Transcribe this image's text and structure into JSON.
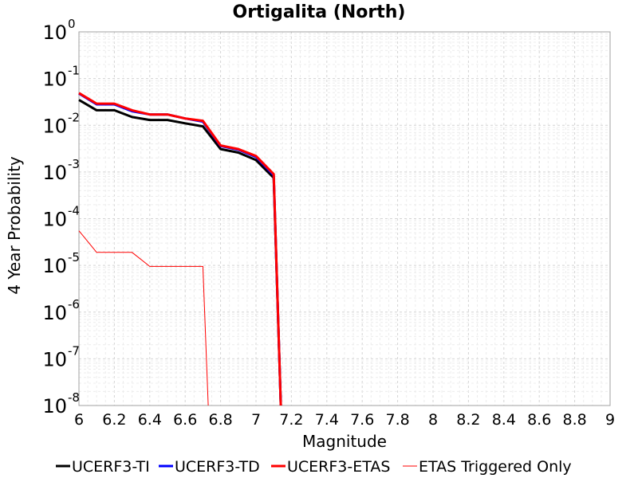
{
  "chart_data": {
    "type": "line",
    "title": "Ortigalita (North)",
    "xlabel": "Magnitude",
    "ylabel": "4 Year Probability",
    "xlim": [
      6,
      9
    ],
    "ylim": [
      1e-08,
      1
    ],
    "yscale": "log",
    "grid": true,
    "legend_position": "bottom",
    "x_ticks": [
      "6",
      "6.2",
      "6.4",
      "6.6",
      "6.8",
      "7",
      "7.2",
      "7.4",
      "7.6",
      "7.8",
      "8",
      "8.2",
      "8.4",
      "8.6",
      "8.8",
      "9"
    ],
    "y_ticks": [
      {
        "base": "10",
        "exp": "0"
      },
      {
        "base": "10",
        "exp": "-1"
      },
      {
        "base": "10",
        "exp": "-2"
      },
      {
        "base": "10",
        "exp": "-3"
      },
      {
        "base": "10",
        "exp": "-4"
      },
      {
        "base": "10",
        "exp": "-5"
      },
      {
        "base": "10",
        "exp": "-6"
      },
      {
        "base": "10",
        "exp": "-7"
      },
      {
        "base": "10",
        "exp": "-8"
      }
    ],
    "series": [
      {
        "name": "UCERF3-TI",
        "color": "#000000",
        "x": [
          6.0,
          6.1,
          6.2,
          6.3,
          6.4,
          6.5,
          6.6,
          6.7,
          6.8,
          6.9,
          7.0,
          7.1,
          7.14
        ],
        "y": [
          0.035,
          0.021,
          0.021,
          0.015,
          0.013,
          0.013,
          0.011,
          0.0095,
          0.0031,
          0.0026,
          0.0018,
          0.00075,
          1e-08
        ]
      },
      {
        "name": "UCERF3-TD",
        "color": "#0000ff",
        "x": [
          6.0,
          6.1,
          6.2,
          6.3,
          6.4,
          6.5,
          6.6,
          6.7,
          6.8,
          6.9,
          7.0,
          7.1,
          7.14
        ],
        "y": [
          0.048,
          0.028,
          0.028,
          0.02,
          0.017,
          0.017,
          0.014,
          0.012,
          0.0036,
          0.003,
          0.0021,
          0.00085,
          1e-08
        ]
      },
      {
        "name": "UCERF3-ETAS",
        "color": "#ff0000",
        "x": [
          6.0,
          6.1,
          6.2,
          6.3,
          6.4,
          6.5,
          6.6,
          6.7,
          6.8,
          6.9,
          7.0,
          7.1,
          7.14
        ],
        "y": [
          0.049,
          0.029,
          0.029,
          0.021,
          0.017,
          0.017,
          0.014,
          0.0125,
          0.0037,
          0.0031,
          0.0022,
          0.0009,
          1e-08
        ]
      },
      {
        "name": "ETAS Triggered Only",
        "color": "#ff0000",
        "x": [
          6.0,
          6.1,
          6.2,
          6.3,
          6.4,
          6.5,
          6.6,
          6.7,
          6.73
        ],
        "y": [
          5.5e-05,
          1.9e-05,
          1.9e-05,
          1.9e-05,
          9.5e-06,
          9.5e-06,
          9.5e-06,
          9.5e-06,
          1e-08
        ]
      }
    ]
  }
}
